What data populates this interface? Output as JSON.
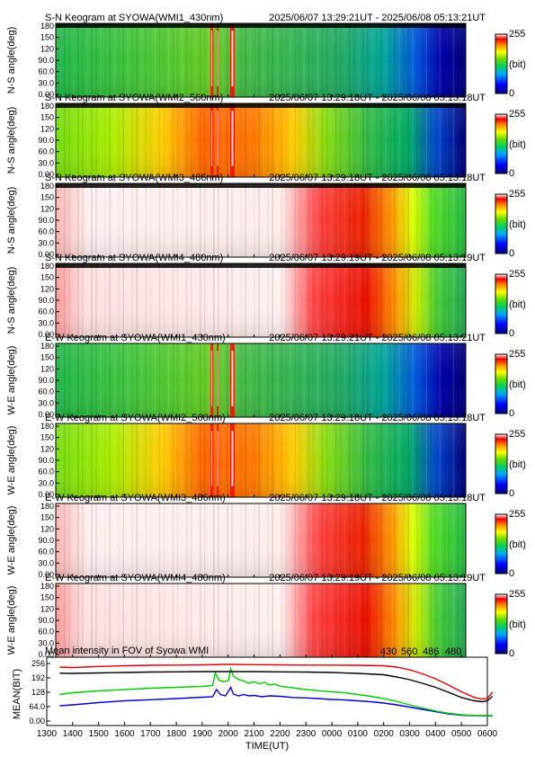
{
  "chart_data": [
    {
      "type": "heatmap",
      "title": "S-N Keogram at SYOWA(WMI1_430nm)",
      "time_range": "2025/06/07 13:29:21UT - 2025/06/08 05:13:21UT",
      "ylabel": "N-S angle(deg)",
      "yticks": [
        "180",
        "150",
        "120",
        "90.0",
        "60.0",
        "30.0",
        "0.00"
      ],
      "colorbar": {
        "max": "255",
        "unit": "(bit)",
        "min": "0"
      },
      "profile": "p430"
    },
    {
      "type": "heatmap",
      "title": "S-N Keogram at SYOWA(WMI2_560nm)",
      "time_range": "2025/06/07 13:29:18UT - 2025/06/08 05:13:18UT",
      "ylabel": "N-S angle(deg)",
      "yticks": [
        "180",
        "150",
        "120",
        "90.0",
        "60.0",
        "30.0",
        "0.00"
      ],
      "colorbar": {
        "max": "255",
        "unit": "(bit)",
        "min": "0"
      },
      "profile": "p560"
    },
    {
      "type": "heatmap",
      "title": "S-N Keogram at SYOWA(WMI3_486nm)",
      "time_range": "2025/06/07 13:29:18UT - 2025/06/08 05:13:18UT",
      "ylabel": "N-S angle(deg)",
      "yticks": [
        "180",
        "150",
        "120",
        "90.0",
        "60.0",
        "30.0",
        "0.00"
      ],
      "colorbar": {
        "max": "255",
        "unit": "(bit)",
        "min": "0"
      },
      "profile": "p486"
    },
    {
      "type": "heatmap",
      "title": "S-N Keogram at SYOWA(WMI4_480nm)",
      "time_range": "2025/06/07 13:29:19UT - 2025/06/08 05:13:19UT",
      "ylabel": "N-S angle(deg)",
      "yticks": [
        "180",
        "150",
        "120",
        "90.0",
        "60.0",
        "30.0",
        "0.00"
      ],
      "colorbar": {
        "max": "255",
        "unit": "(bit)",
        "min": "0"
      },
      "profile": "p480"
    },
    {
      "type": "heatmap",
      "title": "E-W Keogram at SYOWA(WMI1_430nm)",
      "time_range": "2025/06/07 13:29:21UT - 2025/06/08 05:13:21UT",
      "ylabel": "W-E angle(deg)",
      "yticks": [
        "180",
        "150",
        "120",
        "90.0",
        "60.0",
        "30.0",
        "0.00"
      ],
      "colorbar": {
        "max": "255",
        "unit": "(bit)",
        "min": "0"
      },
      "profile": "p430"
    },
    {
      "type": "heatmap",
      "title": "E-W Keogram at SYOWA(WMI2_560nm)",
      "time_range": "2025/06/07 13:29:18UT - 2025/06/08 05:13:18UT",
      "ylabel": "W-E angle(deg)",
      "yticks": [
        "180",
        "150",
        "120",
        "90.0",
        "60.0",
        "30.0",
        "0.00"
      ],
      "colorbar": {
        "max": "255",
        "unit": "(bit)",
        "min": "0"
      },
      "profile": "p560"
    },
    {
      "type": "heatmap",
      "title": "E-W Keogram at SYOWA(WMI3_486nm)",
      "time_range": "2025/06/07 13:29:18UT - 2025/06/08 05:13:18UT",
      "ylabel": "W-E angle(deg)",
      "yticks": [
        "180",
        "150",
        "120",
        "90.0",
        "60.0",
        "30.0",
        "0.00"
      ],
      "colorbar": {
        "max": "255",
        "unit": "(bit)",
        "min": "0"
      },
      "profile": "p486"
    },
    {
      "type": "heatmap",
      "title": "E-W Keogram at SYOWA(WMI4_480nm)",
      "time_range": "2025/06/07 13:29:19UT - 2025/06/08 05:13:19UT",
      "ylabel": "W-E angle(deg)",
      "yticks": [
        "180",
        "150",
        "120",
        "90.0",
        "60.0",
        "30.0",
        "0.00"
      ],
      "colorbar": {
        "max": "255",
        "unit": "(bit)",
        "min": "0"
      },
      "profile": "p480"
    },
    {
      "type": "line",
      "title": "Mean intensity in FOV of Syowa WMI",
      "xlabel": "TIME(UT)",
      "ylabel": "MEAN(BIT)",
      "xticks": [
        "1300",
        "1400",
        "1500",
        "1600",
        "1700",
        "1800",
        "1900",
        "2000",
        "2100",
        "2200",
        "2300",
        "0000",
        "0100",
        "0200",
        "0300",
        "0400",
        "0500",
        "0600"
      ],
      "yticks": [
        "256",
        "192",
        "128",
        "64.0",
        "0.00"
      ],
      "ylim": [
        0,
        256
      ],
      "xlim_hours": [
        13,
        30
      ],
      "series": [
        {
          "name": "430",
          "color": "#0000cc",
          "x": [
            13.5,
            14,
            15,
            16,
            17,
            18,
            19,
            19.4,
            19.55,
            19.7,
            19.9,
            20.1,
            20.2,
            20.4,
            20.6,
            20.8,
            21,
            21.3,
            21.6,
            22,
            22.5,
            23,
            23.5,
            24,
            24.5,
            25,
            25.5,
            26,
            26.5,
            27,
            27.5,
            28,
            28.5,
            29,
            29.4,
            29.6,
            30.2
          ],
          "y": [
            68,
            72,
            82,
            90,
            95,
            100,
            106,
            108,
            140,
            118,
            112,
            150,
            120,
            112,
            118,
            112,
            114,
            108,
            112,
            110,
            105,
            103,
            100,
            96,
            94,
            90,
            86,
            80,
            72,
            62,
            52,
            42,
            32,
            26,
            24,
            24,
            23
          ]
        },
        {
          "name": "560",
          "color": "#00cc00",
          "x": [
            13.5,
            14,
            15,
            16,
            17,
            18,
            19,
            19.4,
            19.5,
            19.65,
            19.8,
            20,
            20.1,
            20.2,
            20.4,
            20.6,
            20.8,
            21,
            21.2,
            21.4,
            21.6,
            21.8,
            22,
            22.5,
            23,
            23.5,
            24,
            24.5,
            25,
            25.5,
            26,
            26.5,
            27,
            27.5,
            28,
            28.5,
            29,
            29.4,
            29.6,
            30.2
          ],
          "y": [
            118,
            126,
            134,
            140,
            146,
            150,
            154,
            158,
            215,
            182,
            176,
            178,
            232,
            200,
            185,
            178,
            168,
            175,
            166,
            172,
            160,
            165,
            155,
            148,
            140,
            135,
            130,
            126,
            118,
            110,
            100,
            88,
            72,
            58,
            45,
            35,
            28,
            25,
            25,
            24
          ]
        },
        {
          "name": "486",
          "color": "#dd0000",
          "x": [
            13.5,
            14,
            15,
            16,
            17,
            18,
            19,
            20,
            21,
            22,
            23,
            24,
            25,
            26,
            26.5,
            27,
            27.5,
            28,
            28.5,
            29,
            29.5,
            29.8,
            30,
            30.2
          ],
          "y": [
            240,
            238,
            243,
            246,
            248,
            249,
            250,
            252,
            251,
            250,
            249,
            249,
            248,
            246,
            240,
            228,
            210,
            188,
            160,
            130,
            105,
            98,
            100,
            128
          ]
        },
        {
          "name": "480",
          "color": "#000000",
          "x": [
            13.5,
            14,
            15,
            16,
            17,
            18,
            19,
            20,
            21,
            22,
            23,
            24,
            25,
            26,
            26.5,
            27,
            27.5,
            28,
            28.5,
            29,
            29.5,
            29.8,
            30,
            30.2
          ],
          "y": [
            213,
            212,
            214,
            216,
            218,
            219,
            220,
            220,
            220,
            219,
            218,
            216,
            212,
            206,
            196,
            184,
            168,
            150,
            128,
            105,
            90,
            86,
            90,
            110
          ]
        }
      ]
    }
  ]
}
